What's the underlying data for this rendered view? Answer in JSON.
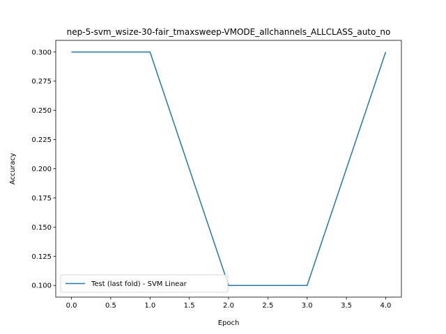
{
  "chart_data": {
    "type": "line",
    "title": "nep-5-svm_wsize-30-fair_tmaxsweep-VMODE_allchannels_ALLCLASS_auto_no",
    "xlabel": "Epoch",
    "ylabel": "Accuracy",
    "xlim": [
      -0.2,
      4.2
    ],
    "ylim": [
      0.09,
      0.31
    ],
    "xticks": [
      0.0,
      0.5,
      1.0,
      1.5,
      2.0,
      2.5,
      3.0,
      3.5,
      4.0
    ],
    "xtick_labels": [
      "0.0",
      "0.5",
      "1.0",
      "1.5",
      "2.0",
      "2.5",
      "3.0",
      "3.5",
      "4.0"
    ],
    "yticks": [
      0.1,
      0.125,
      0.15,
      0.175,
      0.2,
      0.225,
      0.25,
      0.275,
      0.3
    ],
    "ytick_labels": [
      "0.100",
      "0.125",
      "0.150",
      "0.175",
      "0.200",
      "0.225",
      "0.250",
      "0.275",
      "0.300"
    ],
    "grid": false,
    "legend_position": "lower-left",
    "series": [
      {
        "name": "Test (last fold) - SVM Linear",
        "color": "#1f77b4",
        "x": [
          0,
          1,
          2,
          3,
          4
        ],
        "y": [
          0.3,
          0.3,
          0.1,
          0.1,
          0.3
        ]
      }
    ]
  }
}
